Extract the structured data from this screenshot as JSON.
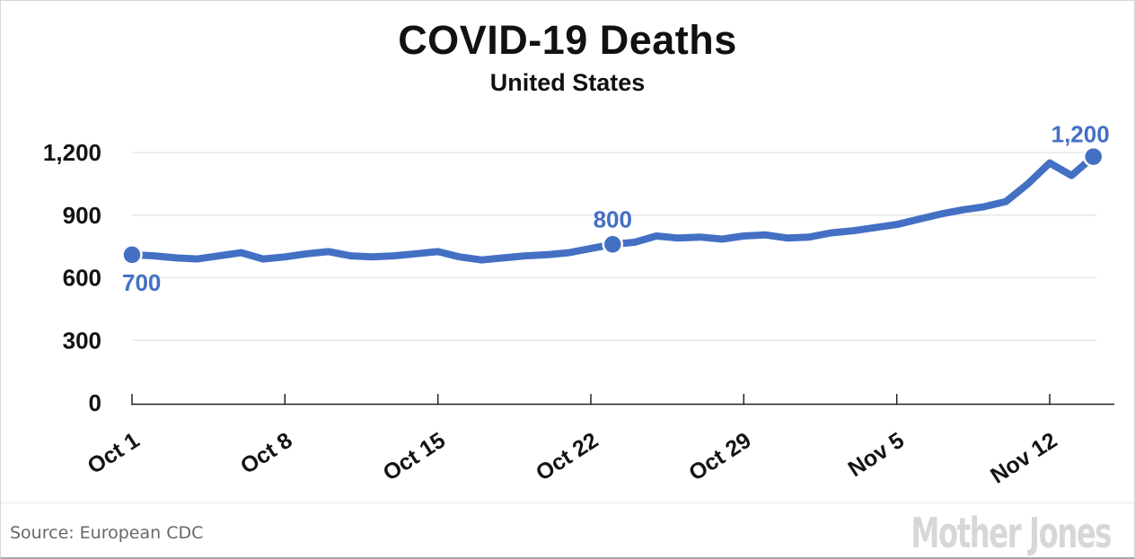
{
  "header": {
    "title": "COVID-19 Deaths",
    "subtitle": "United States"
  },
  "footer": {
    "source_label": "Source:",
    "source_value": "European CDC",
    "logo_text": "Mother Jones"
  },
  "colors": {
    "line": "#4470c4",
    "annotation": "#4470c4",
    "gridline": "#e3e3e3",
    "axis": "#222222",
    "text": "#131313",
    "title": "#111111",
    "source": "#686868",
    "logo": "#d7d7d7"
  },
  "chart_data": {
    "type": "line",
    "title": "COVID-19 Deaths",
    "subtitle": "United States",
    "xlabel": "",
    "ylabel": "",
    "ylim": [
      0,
      1200
    ],
    "grid": "horizontal",
    "legend": "none",
    "y_ticks": [
      0,
      300,
      600,
      900,
      1200
    ],
    "y_tick_labels": [
      "0",
      "300",
      "600",
      "900",
      "1,200"
    ],
    "x_tick_labels": [
      "Oct 1",
      "Oct 8",
      "Oct 15",
      "Oct 22",
      "Oct 29",
      "Nov 5",
      "Nov 12"
    ],
    "x_tick_indices": [
      0,
      7,
      14,
      21,
      28,
      35,
      42
    ],
    "x": [
      "Oct 1",
      "Oct 2",
      "Oct 3",
      "Oct 4",
      "Oct 5",
      "Oct 6",
      "Oct 7",
      "Oct 8",
      "Oct 9",
      "Oct 10",
      "Oct 11",
      "Oct 12",
      "Oct 13",
      "Oct 14",
      "Oct 15",
      "Oct 16",
      "Oct 17",
      "Oct 18",
      "Oct 19",
      "Oct 20",
      "Oct 21",
      "Oct 22",
      "Oct 23",
      "Oct 24",
      "Oct 25",
      "Oct 26",
      "Oct 27",
      "Oct 28",
      "Oct 29",
      "Oct 30",
      "Oct 31",
      "Nov 1",
      "Nov 2",
      "Nov 3",
      "Nov 4",
      "Nov 5",
      "Nov 6",
      "Nov 7",
      "Nov 8",
      "Nov 9",
      "Nov 10",
      "Nov 11",
      "Nov 12",
      "Nov 13",
      "Nov 14"
    ],
    "values": [
      710,
      705,
      695,
      690,
      705,
      720,
      690,
      700,
      715,
      725,
      705,
      700,
      705,
      715,
      725,
      700,
      685,
      695,
      705,
      710,
      720,
      740,
      760,
      770,
      800,
      790,
      795,
      785,
      800,
      805,
      790,
      795,
      815,
      825,
      840,
      855,
      880,
      905,
      925,
      940,
      965,
      1050,
      1150,
      1090,
      1180
    ],
    "annotations": [
      {
        "index": 0,
        "label": "700",
        "align": "start",
        "side": "below"
      },
      {
        "index": 22,
        "label": "800",
        "align": "middle",
        "side": "above"
      },
      {
        "index": 44,
        "label": "1,200",
        "align": "end",
        "side": "above"
      }
    ]
  }
}
